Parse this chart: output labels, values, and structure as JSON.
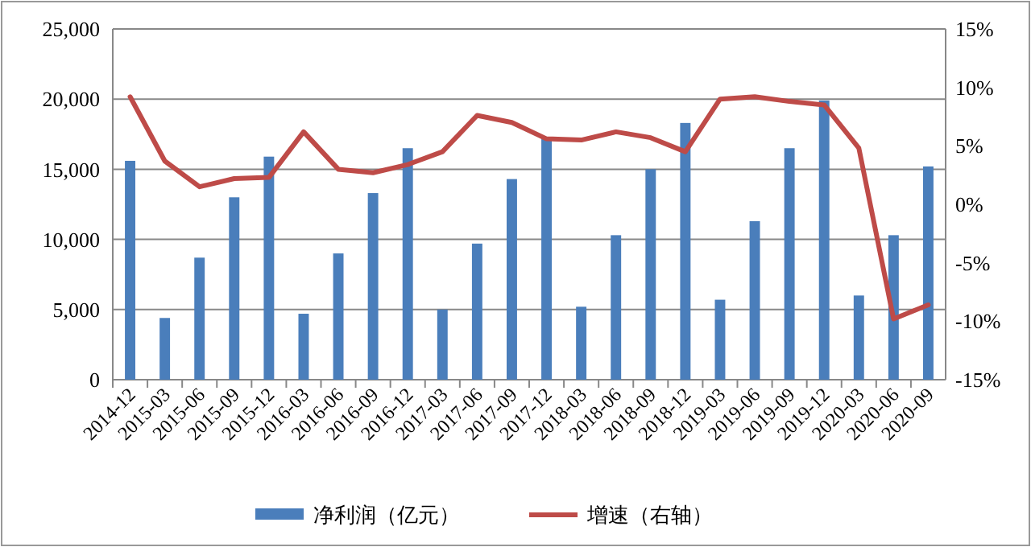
{
  "chart_data": {
    "type": "bar",
    "categories": [
      "2014-12",
      "2015-03",
      "2015-06",
      "2015-09",
      "2015-12",
      "2016-03",
      "2016-06",
      "2016-09",
      "2016-12",
      "2017-03",
      "2017-06",
      "2017-09",
      "2017-12",
      "2018-03",
      "2018-06",
      "2018-09",
      "2018-12",
      "2019-03",
      "2019-06",
      "2019-09",
      "2019-12",
      "2020-03",
      "2020-06",
      "2020-09"
    ],
    "series": [
      {
        "name": "净利润（亿元）",
        "color": "#4a7ebb",
        "values": [
          15600,
          4400,
          8700,
          13000,
          15900,
          4700,
          9000,
          13300,
          16500,
          5000,
          9700,
          14300,
          17200,
          5200,
          10300,
          15000,
          18300,
          5700,
          11300,
          16500,
          19900,
          6000,
          10300,
          15200
        ]
      },
      {
        "name": "增速（右轴）",
        "type": "line",
        "axis": "y2",
        "color": "#be4b48",
        "values": [
          9.2,
          3.7,
          1.5,
          2.2,
          2.3,
          6.2,
          3.0,
          2.7,
          3.4,
          4.5,
          7.6,
          7.0,
          5.6,
          5.5,
          6.2,
          5.7,
          4.5,
          9.0,
          9.2,
          8.8,
          8.5,
          4.8,
          -9.8,
          -8.6
        ]
      }
    ],
    "ylim": [
      0,
      25000
    ],
    "yticks": [
      0,
      {
        "value": 5000,
        "label": "5,000"
      },
      {
        "value": 10000,
        "label": "10,000"
      },
      {
        "value": 15000,
        "label": "15,000"
      },
      {
        "value": 20000,
        "label": "20,000"
      },
      {
        "value": 25000,
        "label": "25,000"
      }
    ],
    "y2lim": [
      -15,
      15
    ],
    "y2ticks": [
      {
        "value": -15,
        "label": "-15%"
      },
      {
        "value": -10,
        "label": "-10%"
      },
      {
        "value": -5,
        "label": "-5%"
      },
      {
        "value": 0,
        "label": "0%"
      },
      {
        "value": 5,
        "label": "5%"
      },
      {
        "value": 10,
        "label": "10%"
      },
      {
        "value": 15,
        "label": "15%"
      }
    ],
    "grid": "y",
    "legend": "bottom",
    "marker": "none",
    "line_style": "solid"
  }
}
